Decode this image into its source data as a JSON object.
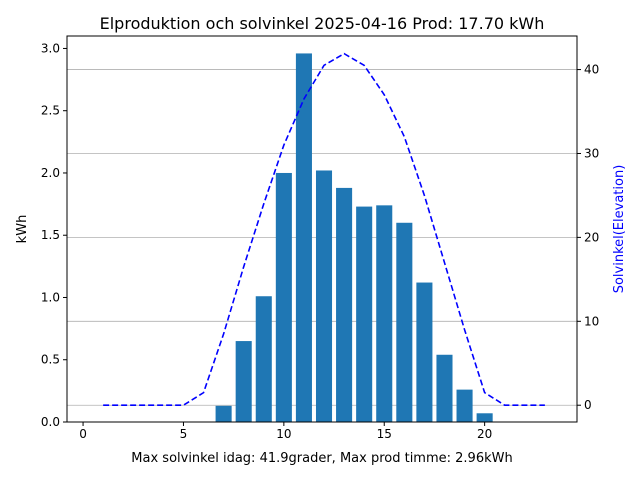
{
  "chart_data": {
    "type": "bar",
    "title": "Elproduktion och solvinkel 2025-04-16 Prod: 17.70 kWh",
    "xlabel": "Max solvinkel idag: 41.9grader, Max prod timme: 2.96kWh",
    "ylabel": "kWh",
    "y2label": "Solvinkel(Elevation)",
    "xlim": [
      -0.8,
      24.6
    ],
    "ylim": [
      0,
      3.1
    ],
    "y2lim": [
      -2,
      44
    ],
    "xticks": [
      "0",
      "5",
      "10",
      "15",
      "20"
    ],
    "yticks": [
      "0.0",
      "0.5",
      "1.0",
      "1.5",
      "2.0",
      "2.5",
      "3.0"
    ],
    "y2ticks": [
      "0",
      "10",
      "20",
      "30",
      "40"
    ],
    "grid": "right-axis",
    "bar_color": "#1f77b4",
    "line_color": "#0000ff",
    "series": [
      {
        "kind": "bar",
        "x": [
          7,
          8,
          9,
          10,
          11,
          12,
          13,
          14,
          15,
          16,
          17,
          18,
          19,
          20
        ],
        "values": [
          0.13,
          0.65,
          1.01,
          2.0,
          2.96,
          2.02,
          1.88,
          1.73,
          1.74,
          1.6,
          1.12,
          0.54,
          0.26,
          0.07
        ]
      },
      {
        "kind": "line",
        "axis": "right",
        "style": "dashed",
        "x": [
          1,
          2,
          3,
          4,
          5,
          6,
          7,
          8,
          9,
          10,
          11,
          12,
          13,
          14,
          15,
          16,
          17,
          18,
          19,
          20,
          21,
          22,
          23
        ],
        "values": [
          0,
          0,
          0,
          0,
          0,
          1.5,
          8.5,
          16.5,
          24,
          31,
          36.5,
          40.5,
          41.9,
          40.5,
          37,
          32,
          25,
          17,
          9,
          1.5,
          0,
          0,
          0
        ]
      }
    ]
  }
}
